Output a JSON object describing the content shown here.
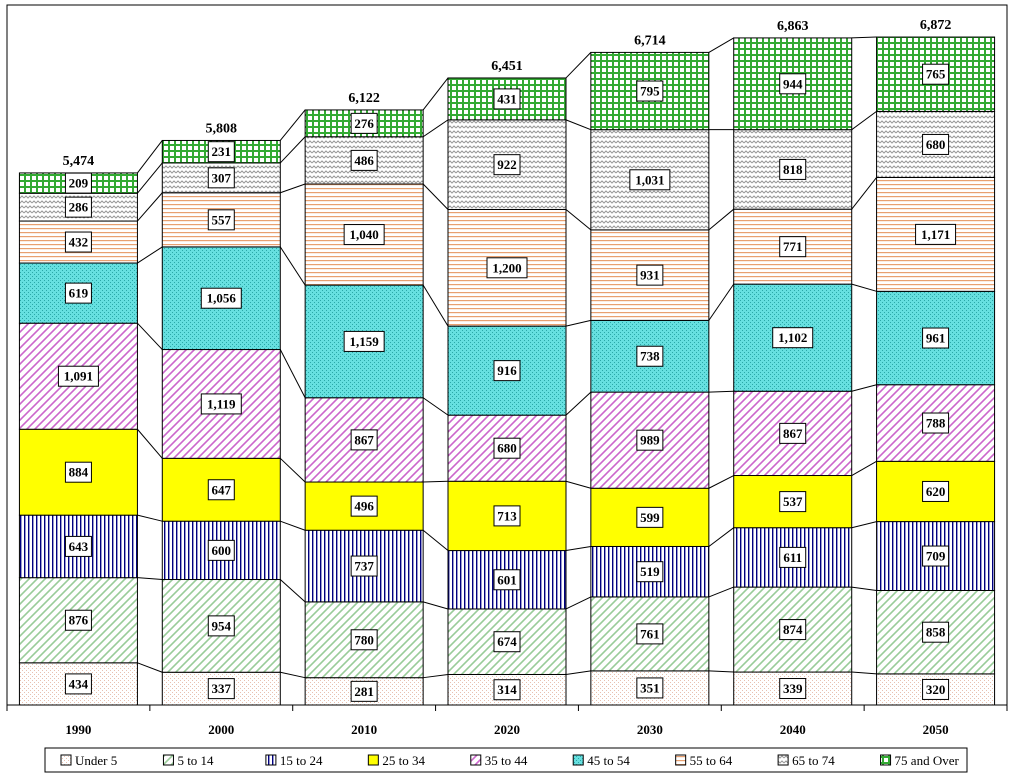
{
  "chart_data": {
    "type": "bar",
    "stacked": true,
    "categories": [
      "1990",
      "2000",
      "2010",
      "2020",
      "2030",
      "2040",
      "2050"
    ],
    "totals": [
      "5,474",
      "5,808",
      "6,122",
      "6,451",
      "6,714",
      "6,863",
      "6,872"
    ],
    "series": [
      {
        "name": "Under 5",
        "pattern": "dots",
        "color": "#e8c0b0",
        "values": [
          434,
          337,
          281,
          314,
          351,
          339,
          320
        ]
      },
      {
        "name": "5 to 14",
        "pattern": "diag",
        "color": "#99cc99",
        "values": [
          876,
          954,
          780,
          674,
          761,
          874,
          858
        ]
      },
      {
        "name": "15 to 24",
        "pattern": "vlines",
        "color": "#000080",
        "values": [
          643,
          600,
          737,
          601,
          519,
          611,
          709
        ]
      },
      {
        "name": "25 to 34",
        "pattern": "solid",
        "color": "#ffff00",
        "values": [
          884,
          647,
          496,
          713,
          599,
          537,
          620
        ]
      },
      {
        "name": "35 to 44",
        "pattern": "diag",
        "color": "#cc66cc",
        "values": [
          1091,
          1119,
          867,
          680,
          989,
          867,
          788
        ]
      },
      {
        "name": "45 to 54",
        "pattern": "dots",
        "color": "#66e0e0",
        "values": [
          619,
          1056,
          1159,
          916,
          738,
          1102,
          961
        ]
      },
      {
        "name": "55 to 64",
        "pattern": "hlines",
        "color": "#e8a070",
        "values": [
          432,
          557,
          1040,
          1200,
          931,
          771,
          1171
        ]
      },
      {
        "name": "65 to 74",
        "pattern": "wave",
        "color": "#999999",
        "values": [
          286,
          307,
          486,
          922,
          1031,
          818,
          680
        ]
      },
      {
        "name": "75 and Over",
        "pattern": "grid",
        "color": "#33aa33",
        "values": [
          209,
          231,
          276,
          431,
          795,
          944,
          765
        ]
      }
    ],
    "ylim": [
      0,
      7200
    ],
    "grid": false,
    "legend_position": "bottom",
    "title": "",
    "xlabel": "",
    "ylabel": ""
  }
}
